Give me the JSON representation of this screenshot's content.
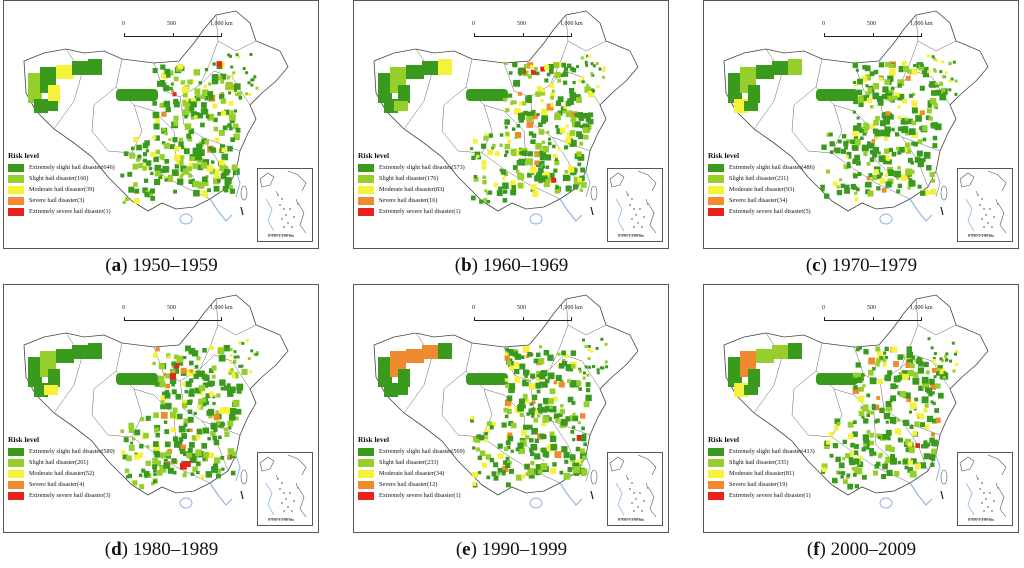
{
  "scale_bar": {
    "ticks": [
      "0",
      "500",
      "1,000 km"
    ]
  },
  "inset": {
    "scale_label": "0    550  1,100 km"
  },
  "legend": {
    "title": "Risk level",
    "classes": [
      {
        "name": "Extremely slight hail disaster",
        "color": "#3a9a1e"
      },
      {
        "name": "Slight hail disaster",
        "color": "#96cf2c"
      },
      {
        "name": "Moderate hail disaster",
        "color": "#f5f23a"
      },
      {
        "name": "Severe hail disaster",
        "color": "#f08a2e"
      },
      {
        "name": "Extremely severe hail disaster",
        "color": "#e8231d"
      }
    ]
  },
  "panels": [
    {
      "letter": "a",
      "period": "1950–1959",
      "counts": [
        "(646)",
        "(160)",
        "(39)",
        "(3)",
        "(1)"
      ]
    },
    {
      "letter": "b",
      "period": "1960–1969",
      "counts": [
        "(573)",
        "(176)",
        "(83)",
        "(16)",
        "(1)"
      ]
    },
    {
      "letter": "c",
      "period": "1970–1979",
      "counts": [
        "(486)",
        "(231)",
        "(93)",
        "(34)",
        "(5)"
      ]
    },
    {
      "letter": "d",
      "period": "1980–1989",
      "counts": [
        "(589)",
        "(201)",
        "(52)",
        "(4)",
        "(3)"
      ]
    },
    {
      "letter": "e",
      "period": "1990–1999",
      "counts": [
        "(569)",
        "(233)",
        "(34)",
        "(12)",
        "(1)"
      ]
    },
    {
      "letter": "f",
      "period": "2000–2009",
      "counts": [
        "(413)",
        "(335)",
        "(81)",
        "(19)",
        "(1)"
      ]
    }
  ]
}
